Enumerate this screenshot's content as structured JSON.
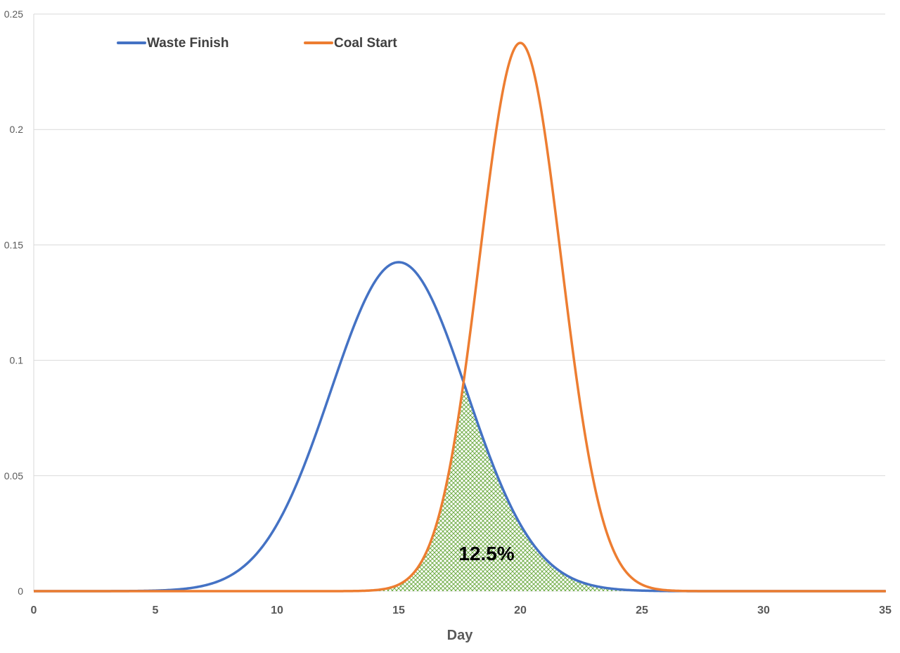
{
  "chart_data": {
    "type": "line",
    "xlabel": "Day",
    "ylabel": "",
    "xlim": [
      0,
      35
    ],
    "ylim": [
      0,
      0.25
    ],
    "x_ticks": [
      "0",
      "5",
      "10",
      "15",
      "20",
      "25",
      "30",
      "35"
    ],
    "y_ticks": [
      "0",
      "0.05",
      "0.1",
      "0.15",
      "0.2",
      "0.25"
    ],
    "grid": "horizontal",
    "legend_position": "top-left",
    "series": [
      {
        "name": "Waste Finish",
        "color": "#4472C4",
        "distribution": "normal",
        "mean": 15,
        "sd": 2.8,
        "peak": 0.1425,
        "x": [
          0,
          5,
          7,
          8,
          9,
          10,
          11,
          12,
          13,
          14,
          15,
          16,
          17,
          18,
          19,
          20,
          21,
          22,
          23,
          24,
          25,
          27,
          30,
          35
        ],
        "y": [
          0.0,
          0.0002,
          0.0025,
          0.0059,
          0.0145,
          0.0289,
          0.0512,
          0.0806,
          0.1105,
          0.1338,
          0.1425,
          0.1338,
          0.1105,
          0.0806,
          0.0512,
          0.0289,
          0.0145,
          0.0059,
          0.0025,
          0.0008,
          0.0002,
          0.0,
          0.0,
          0.0
        ]
      },
      {
        "name": "Coal Start",
        "color": "#ED7D31",
        "distribution": "normal",
        "mean": 20,
        "sd": 1.68,
        "peak": 0.2375,
        "x": [
          0,
          13,
          14,
          15,
          16,
          17,
          18,
          19,
          20,
          21,
          22,
          23,
          24,
          25,
          26,
          27,
          30,
          35
        ],
        "y": [
          0.0,
          0.0004,
          0.0004,
          0.0028,
          0.0136,
          0.0484,
          0.1165,
          0.199,
          0.2375,
          0.199,
          0.1165,
          0.0484,
          0.0136,
          0.0028,
          0.0004,
          0.0,
          0.0,
          0.0
        ]
      }
    ],
    "shaded_overlap": {
      "label": "12.5%",
      "fill_color": "#70AD47"
    }
  }
}
